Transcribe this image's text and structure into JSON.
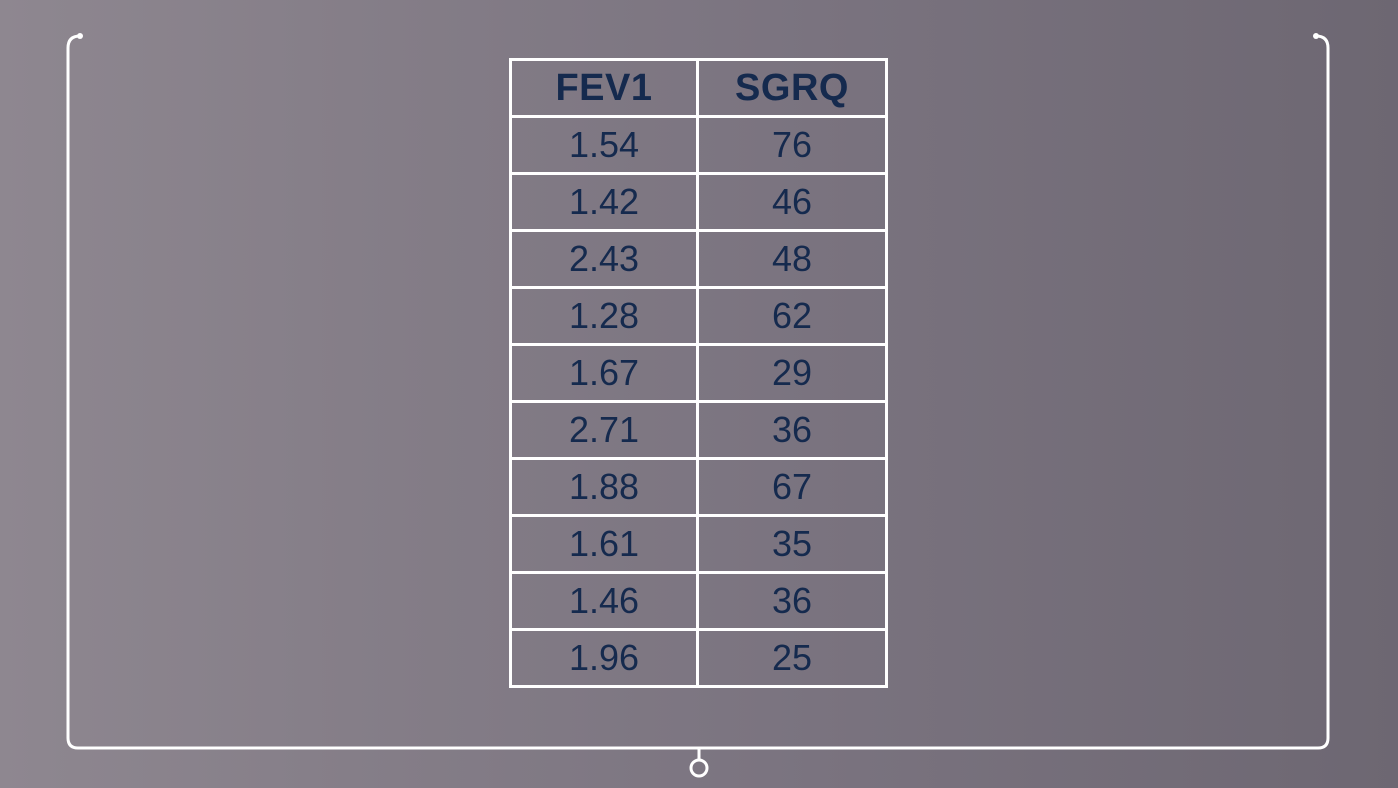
{
  "table": {
    "headers": [
      "FEV1",
      "SGRQ"
    ],
    "rows": [
      [
        "1.54",
        "76"
      ],
      [
        "1.42",
        "46"
      ],
      [
        "2.43",
        "48"
      ],
      [
        "1.28",
        "62"
      ],
      [
        "1.67",
        "29"
      ],
      [
        "2.71",
        "36"
      ],
      [
        "1.88",
        "67"
      ],
      [
        "1.61",
        "35"
      ],
      [
        "1.46",
        "36"
      ],
      [
        "1.96",
        "25"
      ]
    ]
  },
  "colors": {
    "text": "#152a4e",
    "lines": "#ffffff"
  }
}
